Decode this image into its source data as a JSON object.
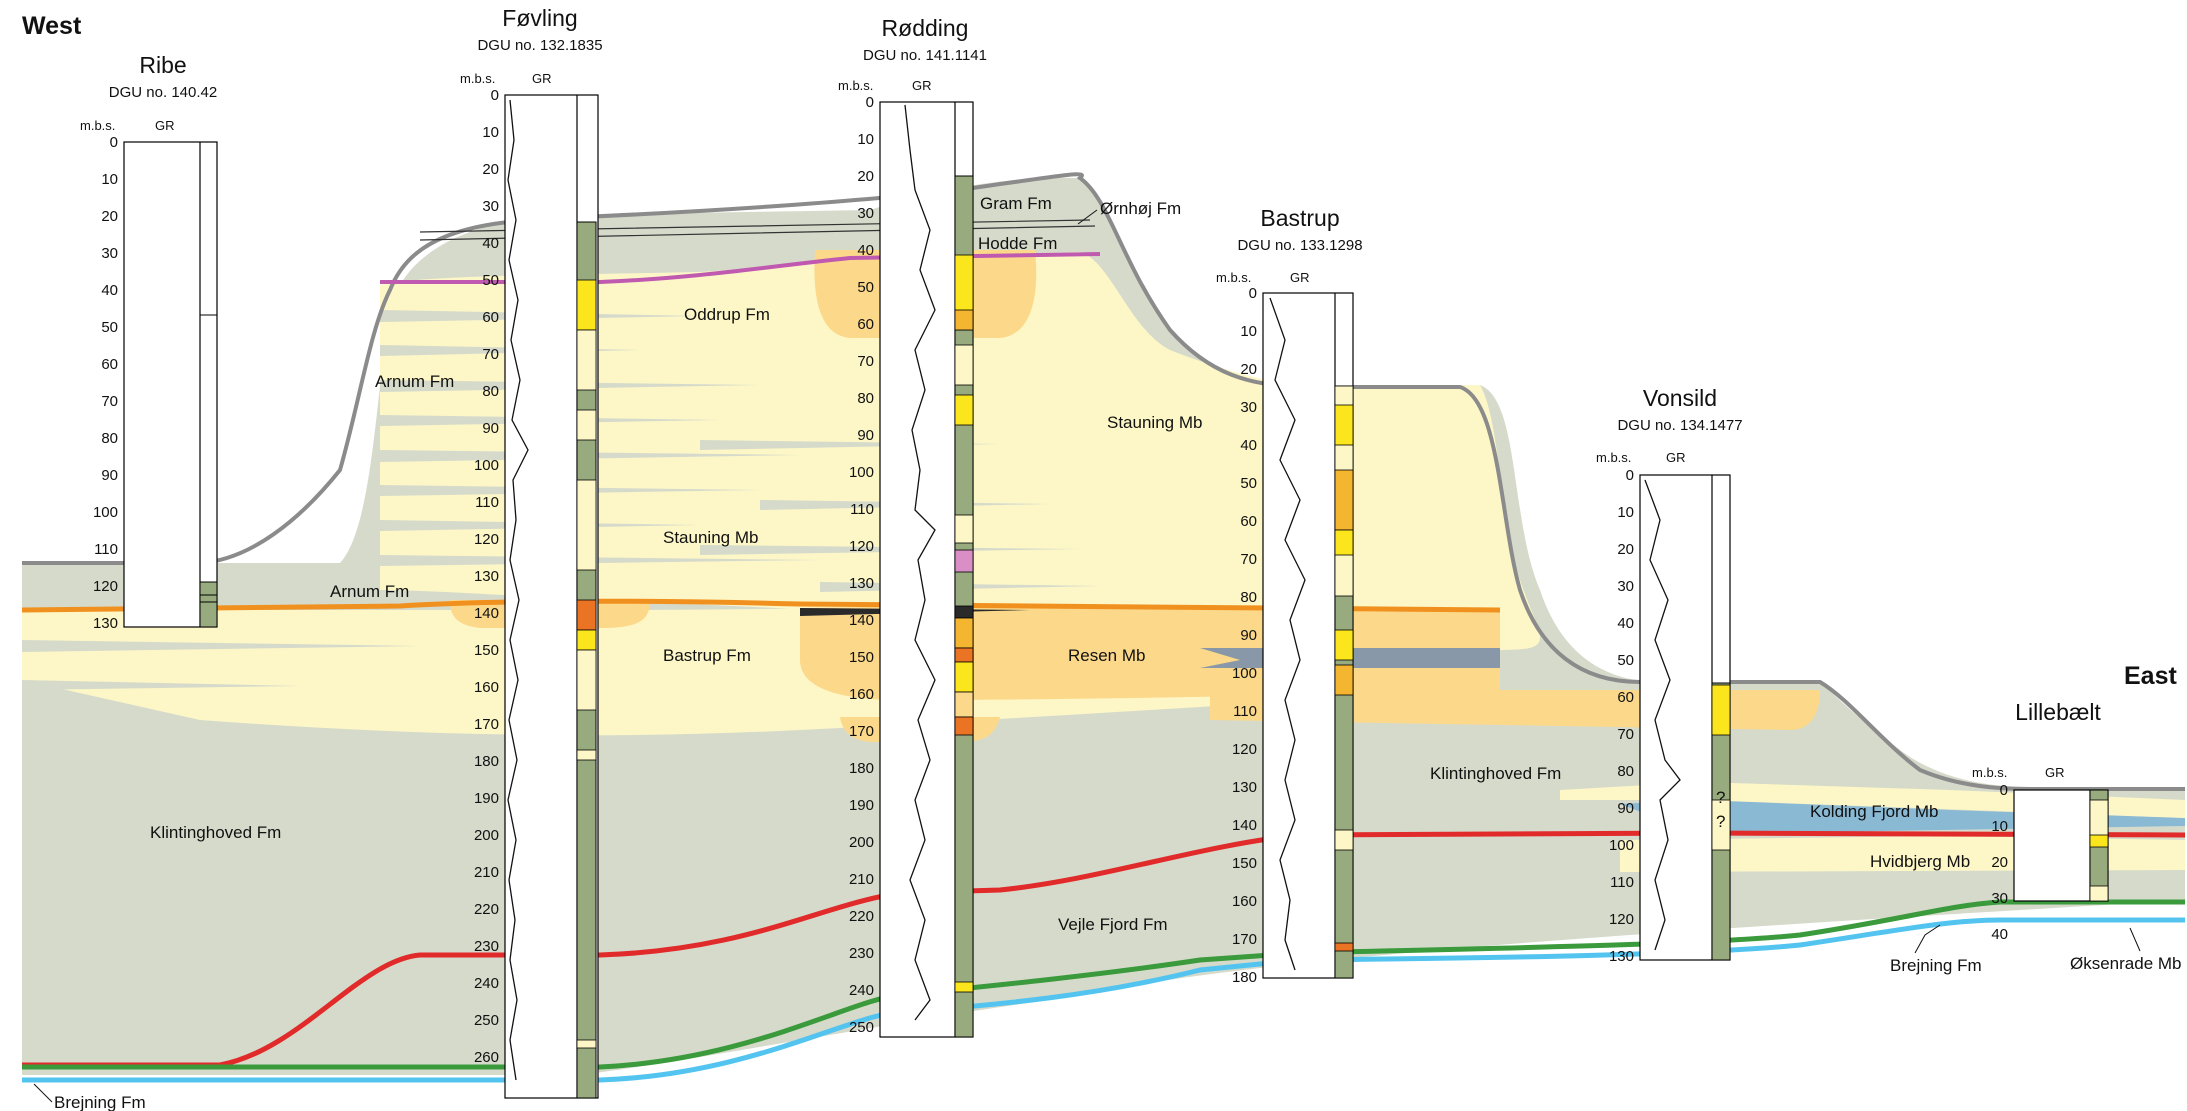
{
  "orientation": {
    "west": "West",
    "east": "East"
  },
  "column_headers": {
    "depth": "m.b.s.",
    "gamma": "GR"
  },
  "colors": {
    "clay_grey": "#d6dacb",
    "sand_yellow": "#fdf7c7",
    "bastrup_orange": "#fcd98a",
    "gamma_column_green": "#98ab7e",
    "bright_yellow": "#fbe51c",
    "orange_bed": "#f4b531",
    "dark_orange_bed": "#ea7424",
    "pink_bed": "#d98fc6",
    "dark_bed": "#2a2a2a",
    "topsurface_grey": "#8b8b8b",
    "arnum_surface_orange": "#f0911f",
    "oddrup_surface_magenta": "#c05ab0",
    "vejle_surface_red": "#e12a2a",
    "brejning_surface_green": "#3a9a3c",
    "base_surface_cyan": "#53c4ef",
    "kolding_blue": "#8ab9d4",
    "resen_slate": "#8898a8"
  },
  "wells": [
    {
      "name": "Ribe",
      "dgu": "DGU no. 140.42",
      "ticks": [
        "0",
        "10",
        "20",
        "30",
        "40",
        "50",
        "60",
        "70",
        "80",
        "90",
        "100",
        "110",
        "120",
        "130"
      ]
    },
    {
      "name": "Føvling",
      "dgu": "DGU no. 132.1835",
      "ticks": [
        "0",
        "10",
        "20",
        "30",
        "40",
        "50",
        "60",
        "70",
        "80",
        "90",
        "100",
        "110",
        "120",
        "130",
        "140",
        "150",
        "160",
        "170",
        "180",
        "190",
        "200",
        "210",
        "220",
        "230",
        "240",
        "250",
        "260"
      ]
    },
    {
      "name": "Rødding",
      "dgu": "DGU no. 141.1141",
      "ticks": [
        "0",
        "10",
        "20",
        "30",
        "40",
        "50",
        "60",
        "70",
        "80",
        "90",
        "100",
        "110",
        "120",
        "130",
        "140",
        "150",
        "160",
        "170",
        "180",
        "190",
        "200",
        "210",
        "220",
        "230",
        "240",
        "250"
      ]
    },
    {
      "name": "Bastrup",
      "dgu": "DGU no. 133.1298",
      "ticks": [
        "0",
        "10",
        "20",
        "30",
        "40",
        "50",
        "60",
        "70",
        "80",
        "90",
        "100",
        "110",
        "120",
        "130",
        "140",
        "150",
        "160",
        "170",
        "180"
      ]
    },
    {
      "name": "Vonsild",
      "dgu": "DGU no. 134.1477",
      "ticks": [
        "0",
        "10",
        "20",
        "30",
        "40",
        "50",
        "60",
        "70",
        "80",
        "90",
        "100",
        "110",
        "120",
        "130"
      ]
    },
    {
      "name": "Lillebælt",
      "dgu": "",
      "ticks": [
        "0",
        "10",
        "20",
        "30",
        "40"
      ]
    }
  ],
  "formations": {
    "gram": "Gram Fm",
    "oernhoej": "Ørnhøj Fm",
    "hodde": "Hodde Fm",
    "oddrup": "Oddrup Fm",
    "arnum_upper": "Arnum Fm",
    "arnum_lower": "Arnum Fm",
    "stauning_west": "Stauning Mb",
    "stauning_east": "Stauning Mb",
    "bastrup": "Bastrup Fm",
    "resen": "Resen Mb",
    "klintinghoved_west": "Klintinghoved Fm",
    "klintinghoved_east": "Klintinghoved Fm",
    "vejle_fjord": "Vejle Fjord Fm",
    "kolding_fjord": "Kolding Fjord Mb",
    "hvidbjerg": "Hvidbjerg Mb",
    "brejning_west": "Brejning Fm",
    "brejning_east": "Brejning Fm",
    "oeksenrade": "Øksenrade Mb"
  },
  "uncertain_marks": [
    "?",
    "?"
  ]
}
